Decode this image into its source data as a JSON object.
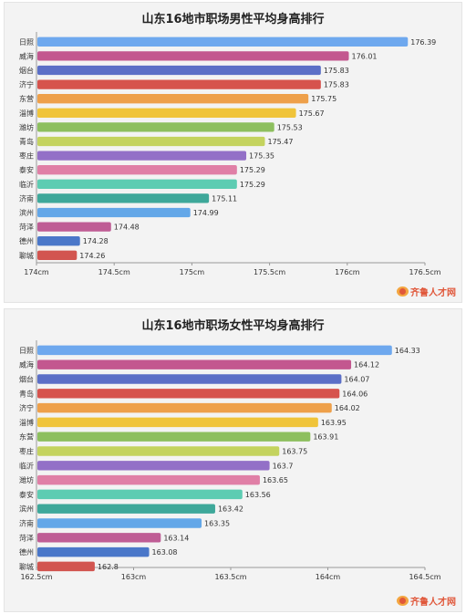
{
  "chart_data": [
    {
      "type": "bar",
      "orientation": "horizontal",
      "title": "山东16地市职场男性平均身高排行",
      "categories": [
        "日照",
        "威海",
        "烟台",
        "济宁",
        "东营",
        "淄博",
        "潍坊",
        "青岛",
        "枣庄",
        "泰安",
        "临沂",
        "济南",
        "滨州",
        "菏泽",
        "德州",
        "聊城"
      ],
      "values": [
        176.39,
        176.01,
        175.83,
        175.83,
        175.75,
        175.67,
        175.53,
        175.47,
        175.35,
        175.29,
        175.29,
        175.11,
        174.99,
        174.48,
        174.28,
        174.26
      ],
      "value_labels": [
        "176.39",
        "176.01",
        "175.83",
        "175.83",
        "175.75",
        "175.67",
        "175.53",
        "175.47",
        "175.35",
        "175.29",
        "175.29",
        "175.11",
        "174.99",
        "174.48",
        "174.28",
        "174.26"
      ],
      "xlim": [
        174,
        176.5
      ],
      "xticks": [
        "174cm",
        "174.5cm",
        "175cm",
        "175.5cm",
        "176cm",
        "176.5cm"
      ],
      "grid": false,
      "colors": [
        "#6ea8ee",
        "#c3578f",
        "#5b6fc7",
        "#d6534d",
        "#eea04a",
        "#f0c43a",
        "#8dbf5e",
        "#c4d35e",
        "#9370c7",
        "#e07fa6",
        "#5dccb2",
        "#3ea89a",
        "#63a7e8",
        "#bf5d95",
        "#4a77c9",
        "#d25550"
      ]
    },
    {
      "type": "bar",
      "orientation": "horizontal",
      "title": "山东16地市职场女性平均身高排行",
      "categories": [
        "日照",
        "威海",
        "烟台",
        "青岛",
        "济宁",
        "淄博",
        "东营",
        "枣庄",
        "临沂",
        "潍坊",
        "泰安",
        "滨州",
        "济南",
        "菏泽",
        "德州",
        "聊城"
      ],
      "values": [
        164.33,
        164.12,
        164.07,
        164.06,
        164.02,
        163.95,
        163.91,
        163.75,
        163.7,
        163.65,
        163.56,
        163.42,
        163.35,
        163.14,
        163.08,
        162.8
      ],
      "value_labels": [
        "164.33",
        "164.12",
        "164.07",
        "164.06",
        "164.02",
        "163.95",
        "163.91",
        "163.75",
        "163.7",
        "163.65",
        "163.56",
        "163.42",
        "163.35",
        "163.14",
        "163.08",
        "162.8"
      ],
      "xlim": [
        162.5,
        164.5
      ],
      "xticks": [
        "162.5cm",
        "163cm",
        "163.5cm",
        "164cm",
        "164.5cm"
      ],
      "grid": false,
      "colors": [
        "#6ea8ee",
        "#c3578f",
        "#5b6fc7",
        "#d6534d",
        "#eea04a",
        "#f0c43a",
        "#8dbf5e",
        "#c4d35e",
        "#9370c7",
        "#e07fa6",
        "#5dccb2",
        "#3ea89a",
        "#63a7e8",
        "#bf5d95",
        "#4a77c9",
        "#d25550"
      ]
    }
  ],
  "logo": {
    "text": "齐鲁人才网"
  }
}
